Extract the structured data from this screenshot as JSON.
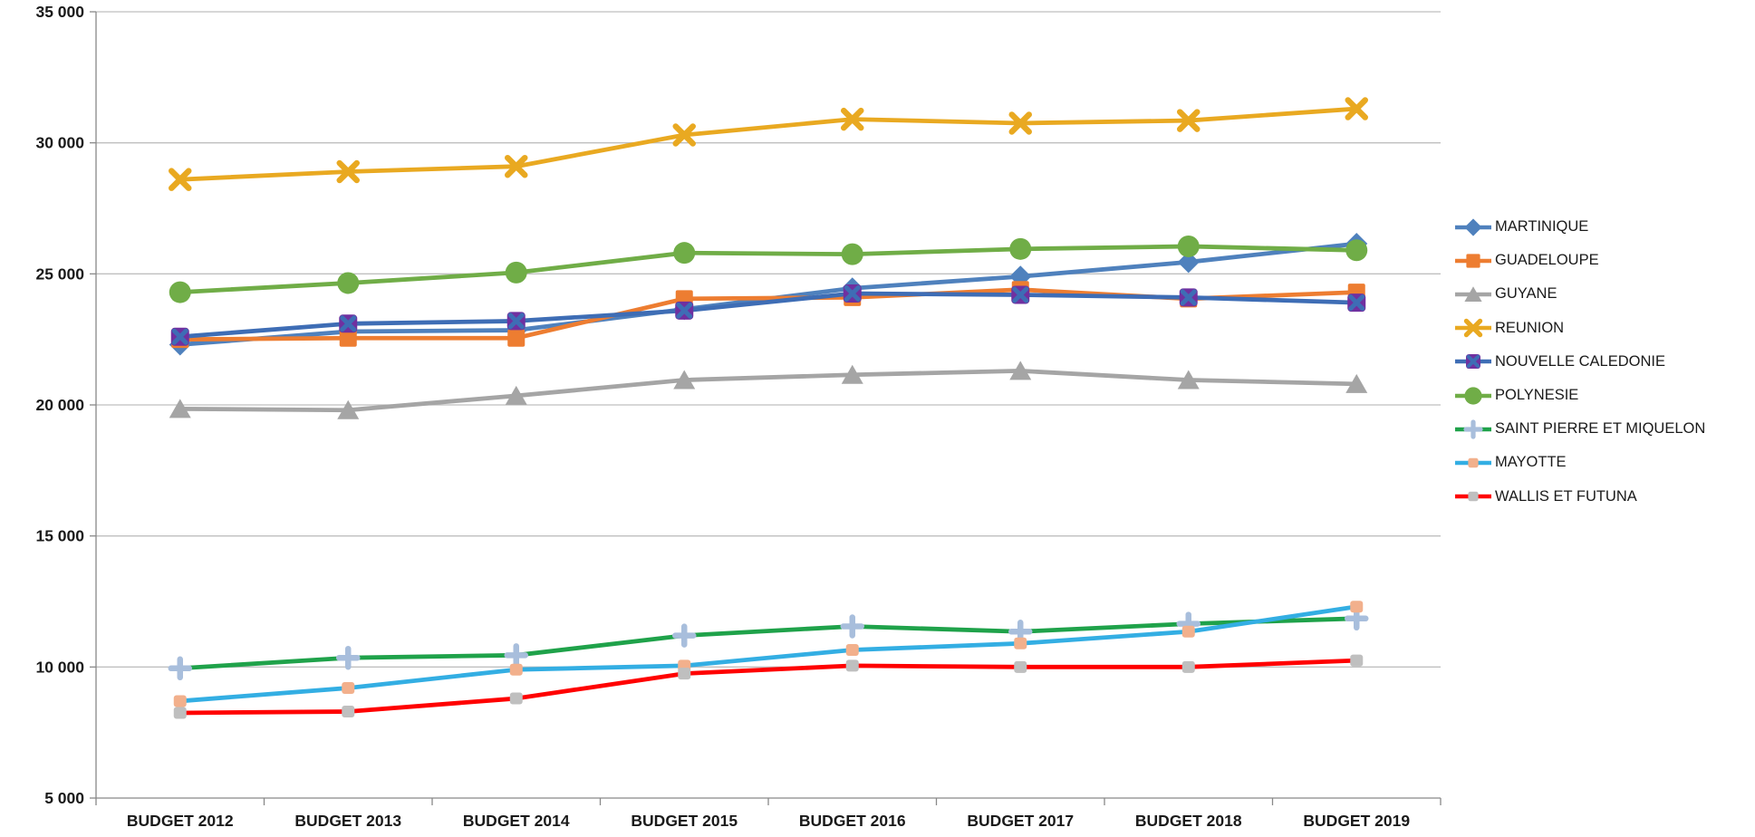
{
  "chart_data": {
    "type": "line",
    "title": "",
    "categories": [
      "BUDGET 2012",
      "BUDGET 2013",
      "BUDGET 2014",
      "BUDGET 2015",
      "BUDGET 2016",
      "BUDGET 2017",
      "BUDGET 2018",
      "BUDGET 2019"
    ],
    "y_axis": {
      "min": 5000,
      "max": 35000,
      "step": 5000,
      "tick_values": [
        35000,
        30000,
        25000,
        20000,
        15000,
        10000,
        5000
      ],
      "tick_labels": [
        "35 000",
        "30 000",
        "25 000",
        "20 000",
        "15 000",
        "10 000",
        "5 000"
      ]
    },
    "grid": true,
    "legend_position": "right",
    "series": [
      {
        "name": "MARTINIQUE",
        "color": "#4F81BD",
        "marker": "diamond",
        "marker_color": "#4F81BD",
        "values": [
          22300,
          22800,
          22850,
          23650,
          24450,
          24900,
          25450,
          26150
        ]
      },
      {
        "name": "GUADELOUPE",
        "color": "#ED7D31",
        "marker": "square",
        "marker_color": "#ED7D31",
        "values": [
          22500,
          22550,
          22550,
          24050,
          24100,
          24400,
          24050,
          24300
        ]
      },
      {
        "name": "GUYANE",
        "color": "#A5A5A5",
        "marker": "triangle",
        "marker_color": "#A5A5A5",
        "values": [
          19850,
          19800,
          20350,
          20950,
          21150,
          21300,
          20950,
          20800
        ]
      },
      {
        "name": "REUNION",
        "color": "#E9A921",
        "marker": "x",
        "marker_color": "#E9A921",
        "values": [
          28600,
          28900,
          29100,
          30300,
          30900,
          30750,
          30850,
          31300
        ]
      },
      {
        "name": "NOUVELLE CALEDONIE",
        "color": "#3E6DB5",
        "marker": "square-x",
        "marker_color": "#7030A0",
        "values": [
          22600,
          23100,
          23200,
          23600,
          24250,
          24200,
          24100,
          23900
        ]
      },
      {
        "name": "POLYNESIE",
        "color": "#70AD47",
        "marker": "circle",
        "marker_color": "#70AD47",
        "values": [
          24300,
          24650,
          25050,
          25800,
          25750,
          25950,
          26050,
          25900
        ]
      },
      {
        "name": "SAINT PIERRE ET MIQUELON",
        "color": "#1FA24A",
        "marker": "plus",
        "marker_color": "#A8BEDC",
        "values": [
          9950,
          10350,
          10450,
          11200,
          11550,
          11350,
          11650,
          11850
        ]
      },
      {
        "name": "MAYOTTE",
        "color": "#33AEE3",
        "marker": "square-small",
        "marker_color": "#F2B08C",
        "values": [
          8700,
          9200,
          9900,
          10050,
          10650,
          10900,
          11350,
          12300
        ]
      },
      {
        "name": "WALLIS ET FUTUNA",
        "color": "#FF0000",
        "marker": "square-small",
        "marker_color": "#BFBFBF",
        "values": [
          8250,
          8300,
          8800,
          9750,
          10050,
          10000,
          10000,
          10250
        ]
      }
    ],
    "colors": {
      "gridline": "#BFBFBF",
      "axis": "#898989",
      "label": "#1a1a1a"
    }
  }
}
